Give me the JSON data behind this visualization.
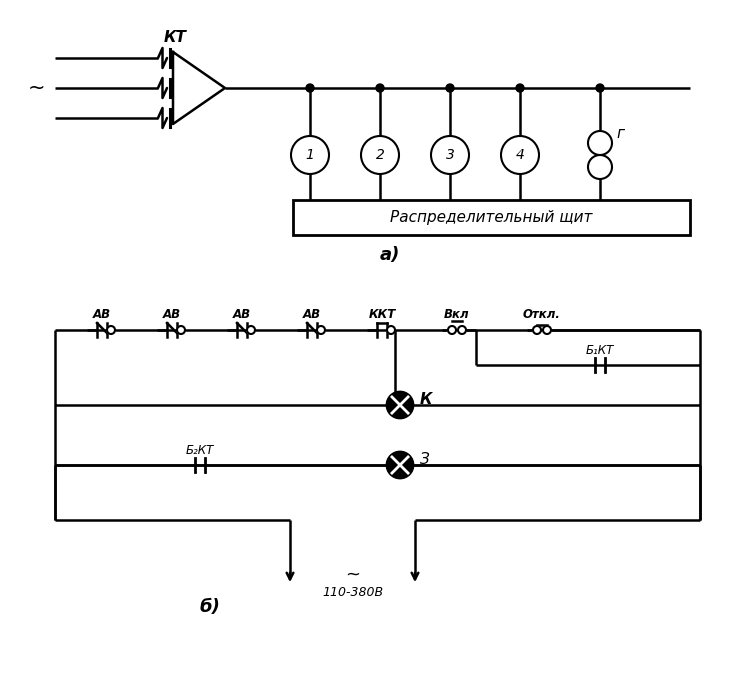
{
  "bg_color": "#ffffff",
  "fig_width": 7.32,
  "fig_height": 6.86,
  "dpi": 100,
  "label_a": "а)",
  "label_b": "б)",
  "kt_label": "КТ",
  "tilde": "~",
  "dist_board_label": "Распределительный щит",
  "circles_labels": [
    "1",
    "2",
    "3",
    "4"
  ],
  "transformer_label": "г",
  "kkt_label": "ККТ",
  "vkl_label": "Вкл",
  "otkl_label": "Откл.",
  "b1kt_label": "Б₁КТ",
  "b2kt_label": "Б₂КТ",
  "k_label": "К",
  "z_label": "З",
  "voltage_label": "110-380В",
  "tilde2": "~"
}
